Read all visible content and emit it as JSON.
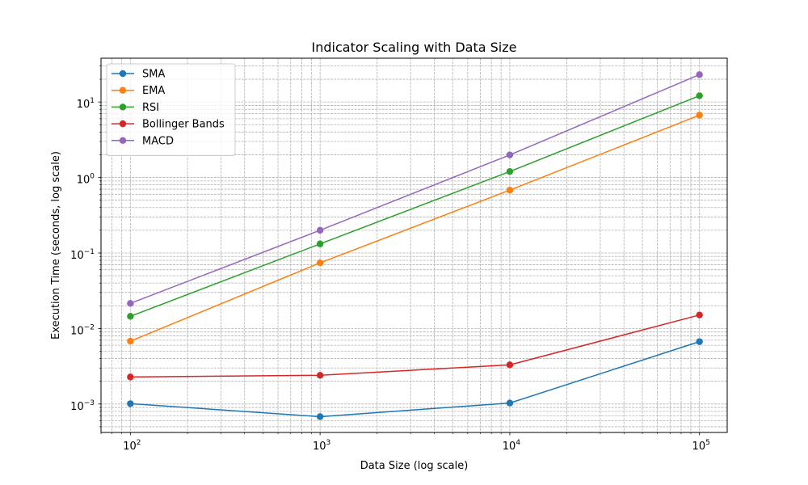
{
  "chart_data": {
    "type": "line",
    "title": "Indicator Scaling with Data Size",
    "xlabel": "Data Size (log scale)",
    "ylabel": "Execution Time (seconds, log scale)",
    "xscale": "log",
    "yscale": "log",
    "x": [
      100,
      1000,
      10000,
      100000
    ],
    "xlim": [
      70,
      140000
    ],
    "ylim": [
      0.00042,
      38
    ],
    "x_ticks": [
      {
        "value": 100,
        "base": "10",
        "exp": "2"
      },
      {
        "value": 1000,
        "base": "10",
        "exp": "3"
      },
      {
        "value": 10000,
        "base": "10",
        "exp": "4"
      },
      {
        "value": 100000,
        "base": "10",
        "exp": "5"
      }
    ],
    "y_ticks": [
      {
        "value": 0.001,
        "base": "10",
        "exp": "−3"
      },
      {
        "value": 0.01,
        "base": "10",
        "exp": "−2"
      },
      {
        "value": 0.1,
        "base": "10",
        "exp": "−1"
      },
      {
        "value": 1,
        "base": "10",
        "exp": "0"
      },
      {
        "value": 10,
        "base": "10",
        "exp": "1"
      }
    ],
    "grid": true,
    "grid_minor": true,
    "legend_position": "top-left",
    "series": [
      {
        "name": "SMA",
        "color": "#1f77b4",
        "values": [
          0.00101,
          0.00068,
          0.00103,
          0.0067
        ]
      },
      {
        "name": "EMA",
        "color": "#ff7f0e",
        "values": [
          0.0068,
          0.074,
          0.68,
          6.7
        ]
      },
      {
        "name": "RSI",
        "color": "#2ca02c",
        "values": [
          0.0145,
          0.132,
          1.2,
          12.1
        ]
      },
      {
        "name": "Bollinger Bands",
        "color": "#d62728",
        "values": [
          0.00228,
          0.0024,
          0.0033,
          0.0151
        ]
      },
      {
        "name": "MACD",
        "color": "#9467bd",
        "values": [
          0.0215,
          0.2,
          1.99,
          23
        ]
      }
    ]
  }
}
